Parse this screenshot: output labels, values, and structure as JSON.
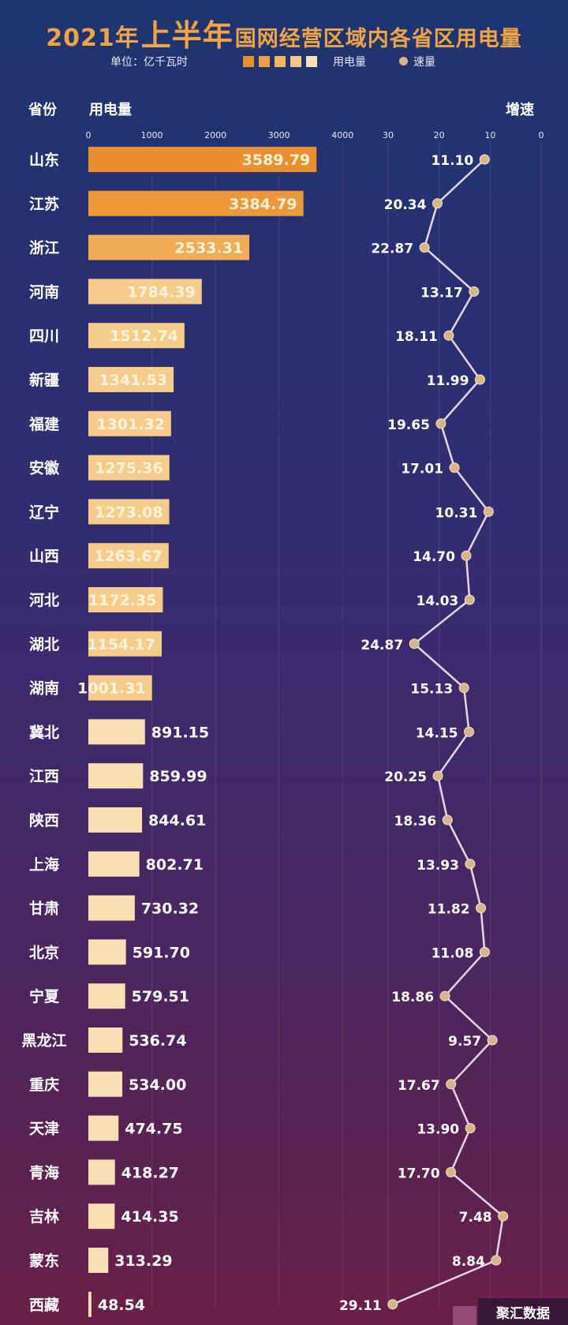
{
  "title": {
    "year": "2021年",
    "big": "上半年",
    "rest": "国网经营区域内各省区用电量"
  },
  "legend": {
    "unit": "单位：亿千瓦时",
    "usage": "用电量",
    "growth": "速量",
    "swatch_colors": [
      "#e88f2e",
      "#eea045",
      "#f2b562",
      "#f5c888",
      "#f8dfb5"
    ]
  },
  "headers": {
    "province": "省份",
    "usage": "用电量",
    "growth": "增速"
  },
  "watermark": "聚汇数据",
  "chart_data": {
    "type": "bar",
    "title": "2021年上半年国网经营区域内各省区用电量",
    "xlabel": "用电量",
    "ylabel": "省份",
    "unit": "亿千瓦时",
    "usage_axis": {
      "ticks": [
        "0",
        "1000",
        "2000",
        "3000",
        "4000"
      ],
      "range": [
        0,
        4000
      ]
    },
    "growth_axis": {
      "ticks": [
        "30",
        "20",
        "10",
        "0"
      ],
      "range": [
        30,
        0
      ]
    },
    "categories": [
      "山东",
      "江苏",
      "浙江",
      "河南",
      "四川",
      "新疆",
      "福建",
      "安徽",
      "辽宁",
      "山西",
      "河北",
      "湖北",
      "湖南",
      "冀北",
      "江西",
      "陕西",
      "上海",
      "甘肃",
      "北京",
      "宁夏",
      "黑龙江",
      "重庆",
      "天津",
      "青海",
      "吉林",
      "蒙东",
      "西藏"
    ],
    "series": [
      {
        "name": "用电量",
        "values": [
          3589.79,
          3384.79,
          2533.31,
          1784.39,
          1512.74,
          1341.53,
          1301.32,
          1275.36,
          1273.08,
          1263.67,
          1172.35,
          1154.17,
          1001.31,
          891.15,
          859.99,
          844.61,
          802.71,
          730.32,
          591.7,
          579.51,
          536.74,
          534.0,
          474.75,
          418.27,
          414.35,
          313.29,
          48.54
        ],
        "labels": [
          "3589.79",
          "3384.79",
          "2533.31",
          "1784.39",
          "1512.74",
          "1341.53",
          "1301.32",
          "1275.36",
          "1273.08",
          "1263.67",
          "1172.35",
          "1154.17",
          "1001.31",
          "891.15",
          "859.99",
          "844.61",
          "802.71",
          "730.32",
          "591.70",
          "579.51",
          "536.74",
          "534.00",
          "474.75",
          "418.27",
          "414.35",
          "313.29",
          "48.54"
        ]
      },
      {
        "name": "速量",
        "type": "line",
        "values": [
          11.1,
          20.34,
          22.87,
          13.17,
          18.11,
          11.99,
          19.65,
          17.01,
          10.31,
          14.7,
          14.03,
          24.87,
          15.13,
          14.15,
          20.25,
          18.36,
          13.93,
          11.82,
          11.08,
          18.86,
          9.57,
          17.67,
          13.9,
          17.7,
          7.48,
          8.84,
          29.11
        ],
        "labels": [
          "11.10",
          "20.34",
          "22.87",
          "13.17",
          "18.11",
          "11.99",
          "19.65",
          "17.01",
          "10.31",
          "14.70",
          "14.03",
          "24.87",
          "15.13",
          "14.15",
          "20.25",
          "18.36",
          "13.93",
          "11.82",
          "11.08",
          "18.86",
          "9.57",
          "17.67",
          "13.90",
          "17.70",
          "7.48",
          "8.84",
          "29.11"
        ]
      }
    ],
    "colors": {
      "bar_tier1": "#e88f2e",
      "bar_tier2": "#f0ad55",
      "bar_tier3": "#f6cc8a",
      "bar_tier4": "#f9e0b4",
      "line": "#e6d6e4",
      "dot": "#d8b48a",
      "inside_label": "#fff3dc",
      "outside_label": "#ffffff",
      "growth_label": "#ffffff"
    }
  }
}
